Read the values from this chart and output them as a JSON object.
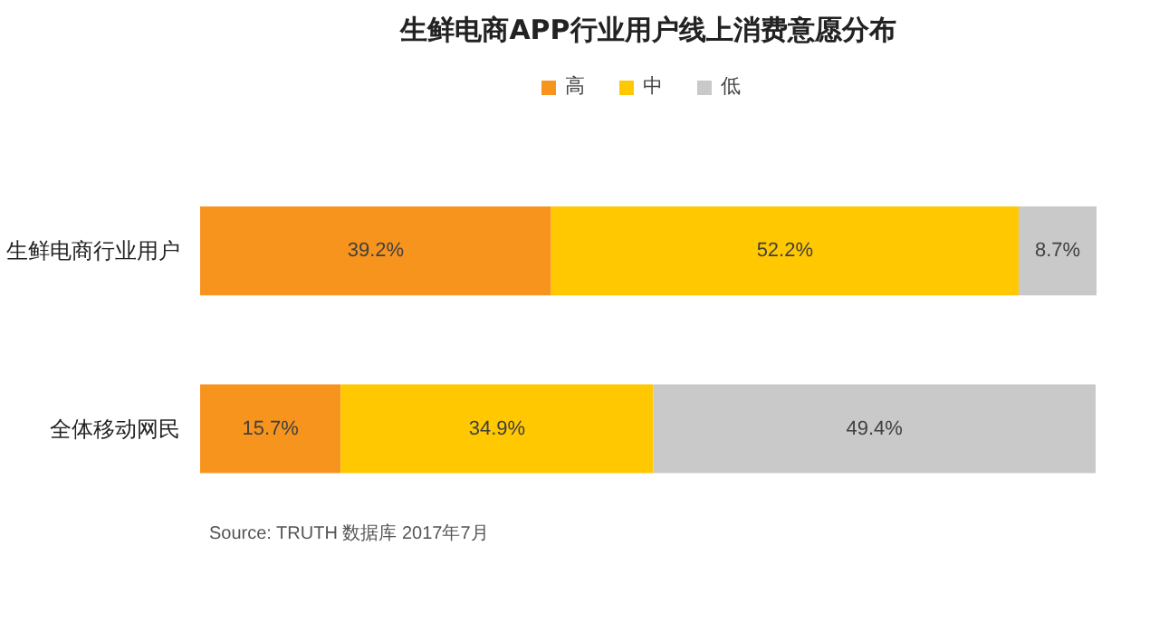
{
  "chart_data": {
    "type": "bar",
    "orientation": "horizontal",
    "stacked": true,
    "title": "生鲜电商APP行业用户线上消费意愿分布",
    "categories": [
      "生鲜电商行业用户",
      "全体移动网民"
    ],
    "series": [
      {
        "name": "高",
        "color": "#f7941d",
        "values": [
          39.2,
          15.7
        ],
        "value_labels": [
          "39.2%",
          "15.7%"
        ]
      },
      {
        "name": "中",
        "color": "#ffc800",
        "values": [
          52.2,
          34.9
        ],
        "value_labels": [
          "52.2%",
          "34.9%"
        ]
      },
      {
        "name": "低",
        "color": "#c9c9c9",
        "values": [
          8.7,
          49.4
        ],
        "value_labels": [
          "8.7%",
          "49.4%"
        ]
      }
    ],
    "legend": "top",
    "grid": false,
    "annotations": [
      "Source:  TRUTH 数据库 2017年7月"
    ]
  }
}
